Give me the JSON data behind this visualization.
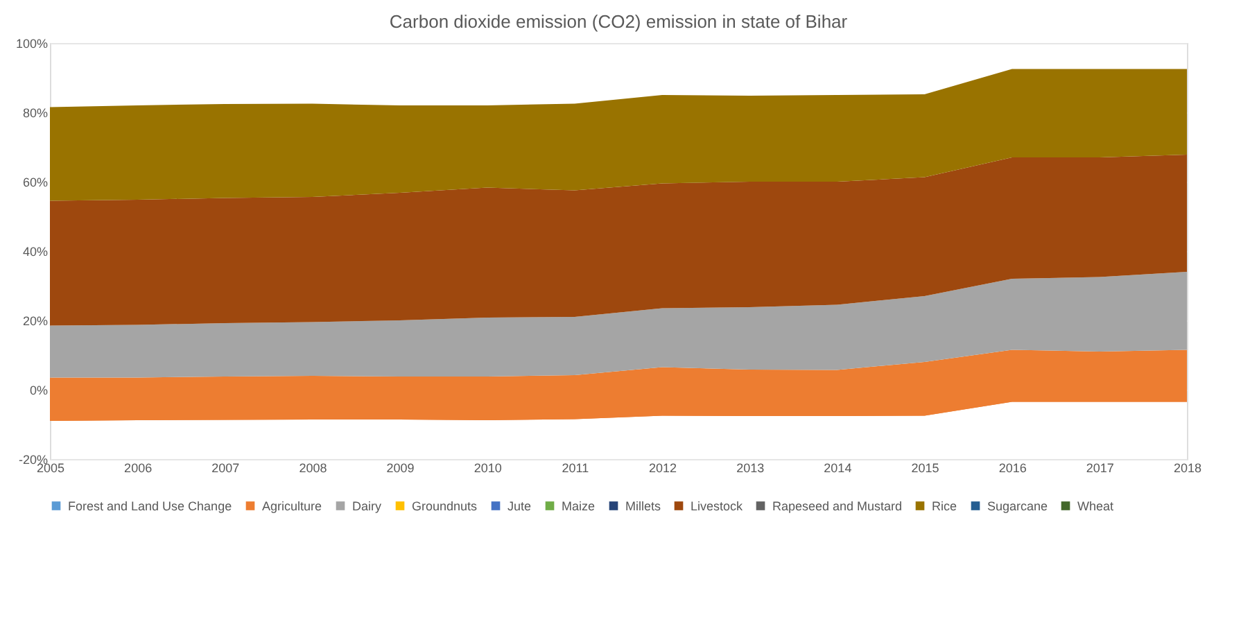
{
  "chart_data": {
    "type": "area",
    "title": "Carbon dioxide emission (CO2) emission in state of Bihar",
    "stacked": true,
    "categories": [
      "2005",
      "2006",
      "2007",
      "2008",
      "2009",
      "2010",
      "2011",
      "2012",
      "2013",
      "2014",
      "2015",
      "2016",
      "2017",
      "2018"
    ],
    "series": [
      {
        "color": "#ed7d31",
        "values": [
          -9,
          -8.8,
          -8.7,
          -8.6,
          -8.6,
          -8.8,
          -8.5,
          -7.5,
          -7.6,
          -7.6,
          -7.5,
          -3.5,
          -3.5,
          -3.5
        ]
      },
      {
        "name": "Forest and Land Use Change",
        "color": "#5b9bd5",
        "values": [
          null,
          null,
          null,
          null,
          null,
          null,
          null,
          null,
          null,
          null,
          null,
          null,
          null,
          null
        ]
      },
      {
        "name": "Agriculture",
        "color": "#ed7d31",
        "values": [
          12.5,
          12.3,
          12.5,
          12.6,
          12.4,
          12.6,
          12.7,
          14,
          13.4,
          13.3,
          15.5,
          15,
          14.5,
          15
        ]
      },
      {
        "name": "Dairy",
        "color": "#a5a5a5",
        "values": [
          15,
          15.2,
          15.4,
          15.5,
          16.2,
          17,
          16.8,
          17,
          18,
          18.8,
          19,
          20.5,
          21.5,
          22.5
        ]
      },
      {
        "name": "Groundnuts",
        "color": "#ffc000",
        "values": [
          null,
          null,
          null,
          null,
          null,
          null,
          null,
          null,
          null,
          null,
          null,
          null,
          null,
          null
        ]
      },
      {
        "name": "Jute",
        "color": "#4472c4",
        "values": [
          null,
          null,
          null,
          null,
          null,
          null,
          null,
          null,
          null,
          null,
          null,
          null,
          null,
          null
        ]
      },
      {
        "name": "Maize",
        "color": "#70ad47",
        "values": [
          null,
          null,
          null,
          null,
          null,
          null,
          null,
          null,
          null,
          null,
          null,
          null,
          null,
          null
        ]
      },
      {
        "name": "Millets",
        "color": "#264478",
        "values": [
          null,
          null,
          null,
          null,
          null,
          null,
          null,
          null,
          null,
          null,
          null,
          null,
          null,
          null
        ]
      },
      {
        "name": "Livestock",
        "color": "#9e480e",
        "values": [
          36,
          36.1,
          36.1,
          36.1,
          36.8,
          37.5,
          36.5,
          36,
          36.2,
          35.5,
          34.3,
          35,
          34.5,
          33.8
        ]
      },
      {
        "name": "Rapeseed and Mustard",
        "color": "#636363",
        "values": [
          null,
          null,
          null,
          null,
          null,
          null,
          null,
          null,
          null,
          null,
          null,
          null,
          null,
          null
        ]
      },
      {
        "name": "Rice",
        "color": "#997300",
        "values": [
          27,
          27.2,
          27.1,
          26.9,
          25.2,
          23.7,
          25,
          25.5,
          24.8,
          25,
          23.9,
          25.5,
          25.5,
          24.7
        ]
      },
      {
        "name": "Sugarcane",
        "color": "#255e91",
        "values": [
          null,
          null,
          null,
          null,
          null,
          null,
          null,
          null,
          null,
          null,
          null,
          null,
          null,
          null
        ]
      },
      {
        "name": "Wheat",
        "color": "#43682b",
        "values": [
          null,
          null,
          null,
          null,
          null,
          null,
          null,
          null,
          null,
          null,
          null,
          null,
          null,
          null
        ]
      }
    ],
    "ylim": [
      -20,
      100
    ],
    "yticks": [
      {
        "value": -20,
        "label": "-20%"
      },
      {
        "value": 0,
        "label": "0%"
      },
      {
        "value": 20,
        "label": "20%"
      },
      {
        "value": 40,
        "label": "40%"
      },
      {
        "value": 60,
        "label": "60%"
      },
      {
        "value": 80,
        "label": "80%"
      },
      {
        "value": 100,
        "label": "100%"
      }
    ],
    "grid": "y",
    "legend": "bottom"
  }
}
